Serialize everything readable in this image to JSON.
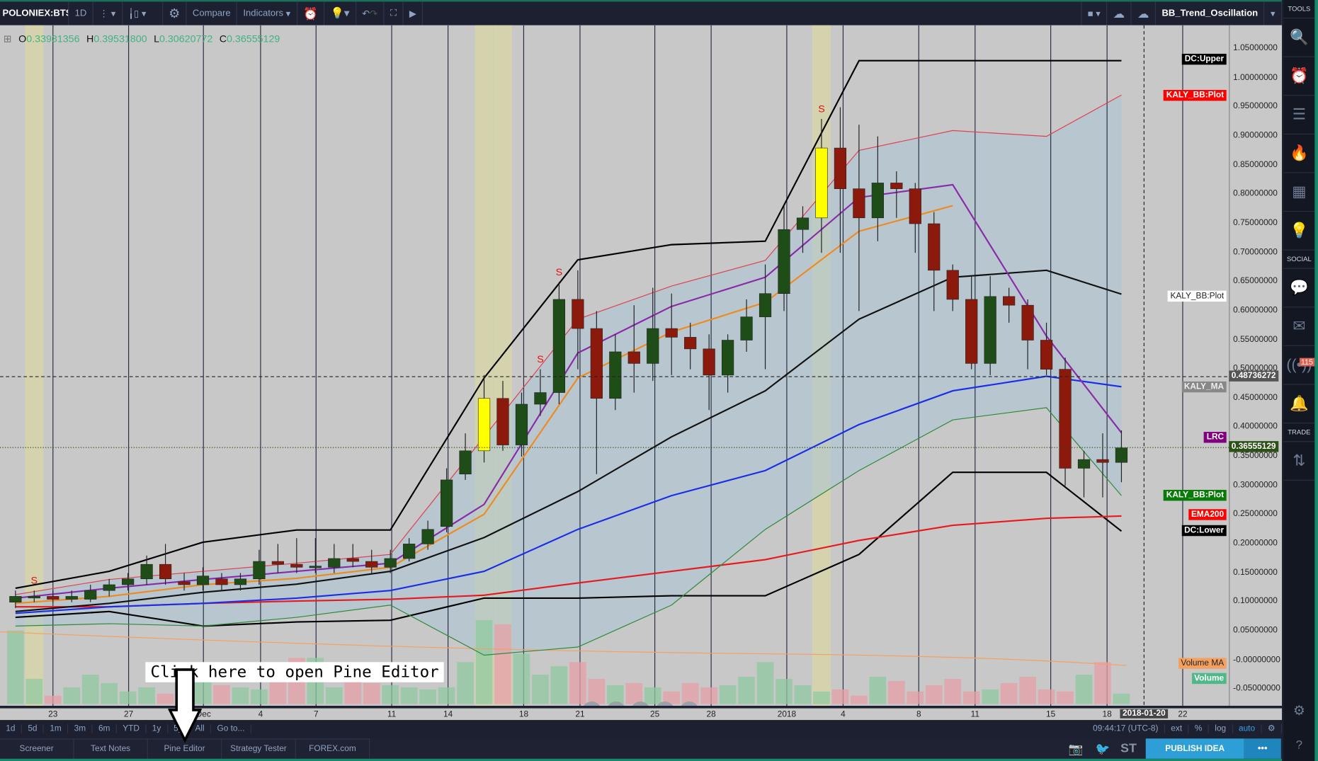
{
  "toolbar": {
    "symbol": "POLONIEX:BTSUSD",
    "interval": "1D",
    "compare": "Compare",
    "indicators": "Indicators",
    "layout_name": "BB_Trend_Oscillation"
  },
  "ohlc": {
    "o_label": "O",
    "o": "0.33931356",
    "h_label": "H",
    "h": "0.39531800",
    "l_label": "L",
    "l": "0.30620772",
    "c_label": "C",
    "c": "0.36555129"
  },
  "price_axis": [
    "1.05000000",
    "1.00000000",
    "0.95000000",
    "0.90000000",
    "0.85000000",
    "0.80000000",
    "0.75000000",
    "0.70000000",
    "0.65000000",
    "0.60000000",
    "0.55000000",
    "0.50000000",
    "0.45000000",
    "0.40000000",
    "0.35000000",
    "0.30000000",
    "0.25000000",
    "0.20000000",
    "0.15000000",
    "0.10000000",
    "0.05000000",
    "-0.00000000",
    "-0.05000000"
  ],
  "crosshair_price": "0.48736272",
  "last_price": "0.36555129",
  "indicator_labels": {
    "dc_upper": "DC:Upper",
    "bb_upper": "KALY_BB:Plot",
    "bb_mid": "KALY_BB:Plot",
    "kaly_ma": "KALY_MA",
    "lrc": "LRC",
    "bb_lower": "KALY_BB:Plot",
    "ema200": "EMA200",
    "dc_lower": "DC:Lower",
    "volume_ma": "Volume MA",
    "volume": "Volume"
  },
  "signal_marker": "S",
  "time_axis": [
    [
      "23",
      63
    ],
    [
      "27",
      153
    ],
    [
      "Dec",
      242
    ],
    [
      "4",
      310
    ],
    [
      "7",
      376
    ],
    [
      "11",
      466
    ],
    [
      "14",
      533
    ],
    [
      "18",
      623
    ],
    [
      "21",
      690
    ],
    [
      "25",
      779
    ],
    [
      "28",
      846
    ],
    [
      "2018",
      936
    ],
    [
      "4",
      1003
    ],
    [
      "8",
      1093
    ],
    [
      "11",
      1160
    ],
    [
      "15",
      1250
    ],
    [
      "18",
      1317
    ],
    [
      "22",
      1407
    ]
  ],
  "crosshair_date": "2018-01-20",
  "ranges": [
    "1d",
    "5d",
    "1m",
    "3m",
    "6m",
    "YTD",
    "1y",
    "5y",
    "All",
    "Go to..."
  ],
  "clock": "09:44:17 (UTC-8)",
  "scale_opts": [
    "ext",
    "%",
    "log",
    "auto"
  ],
  "tabs": [
    "Screener",
    "Text Notes",
    "Pine Editor",
    "Strategy Tester",
    "FOREX.com"
  ],
  "publish": "PUBLISH IDEA",
  "sidebar": {
    "tools": "TOOLS",
    "social": "SOCIAL",
    "trade": "TRADE",
    "badge": "115"
  },
  "annotation": "Click here to open Pine Editor",
  "chart_data": {
    "type": "candlestick",
    "start": "2017-11-21",
    "end": "2018-01-19",
    "ylim": [
      -0.05,
      1.05
    ],
    "open": [
      0.1,
      0.11,
      0.11,
      0.105,
      0.105,
      0.12,
      0.13,
      0.14,
      0.165,
      0.135,
      0.13,
      0.14,
      0.13,
      0.14,
      0.17,
      0.165,
      0.16,
      0.16,
      0.175,
      0.17,
      0.16,
      0.175,
      0.2,
      0.23,
      0.32,
      0.36,
      0.45,
      0.37,
      0.44,
      0.46,
      0.62,
      0.57,
      0.45,
      0.53,
      0.51,
      0.57,
      0.555,
      0.535,
      0.49,
      0.55,
      0.59,
      0.63,
      0.74,
      0.76,
      0.88,
      0.81,
      0.76,
      0.82,
      0.81,
      0.75,
      0.67,
      0.62,
      0.51,
      0.625,
      0.61,
      0.55,
      0.5,
      0.33,
      0.345,
      0.34
    ],
    "close": [
      0.11,
      0.11,
      0.105,
      0.11,
      0.12,
      0.13,
      0.14,
      0.165,
      0.14,
      0.13,
      0.145,
      0.13,
      0.14,
      0.17,
      0.165,
      0.16,
      0.162,
      0.175,
      0.17,
      0.16,
      0.175,
      0.2,
      0.225,
      0.31,
      0.36,
      0.45,
      0.37,
      0.44,
      0.46,
      0.62,
      0.57,
      0.45,
      0.53,
      0.51,
      0.57,
      0.555,
      0.535,
      0.49,
      0.55,
      0.59,
      0.63,
      0.74,
      0.76,
      0.88,
      0.81,
      0.76,
      0.82,
      0.81,
      0.75,
      0.67,
      0.62,
      0.51,
      0.625,
      0.61,
      0.55,
      0.5,
      0.33,
      0.345,
      0.34,
      0.365
    ],
    "high": [
      0.12,
      0.12,
      0.12,
      0.12,
      0.13,
      0.14,
      0.15,
      0.18,
      0.2,
      0.15,
      0.16,
      0.15,
      0.15,
      0.19,
      0.2,
      0.21,
      0.21,
      0.2,
      0.2,
      0.19,
      0.19,
      0.21,
      0.24,
      0.33,
      0.39,
      0.49,
      0.48,
      0.46,
      0.5,
      0.65,
      0.67,
      0.6,
      0.56,
      0.61,
      0.64,
      0.63,
      0.58,
      0.56,
      0.56,
      0.62,
      0.68,
      0.78,
      0.78,
      0.93,
      0.95,
      0.92,
      0.9,
      0.84,
      0.82,
      0.77,
      0.68,
      0.66,
      0.66,
      0.64,
      0.62,
      0.58,
      0.52,
      0.36,
      0.39,
      0.395
    ],
    "low": [
      0.09,
      0.1,
      0.1,
      0.1,
      0.1,
      0.11,
      0.12,
      0.13,
      0.13,
      0.12,
      0.12,
      0.12,
      0.12,
      0.13,
      0.15,
      0.15,
      0.15,
      0.15,
      0.16,
      0.15,
      0.15,
      0.17,
      0.19,
      0.22,
      0.31,
      0.34,
      0.36,
      0.35,
      0.42,
      0.44,
      0.5,
      0.32,
      0.43,
      0.46,
      0.48,
      0.49,
      0.5,
      0.43,
      0.46,
      0.53,
      0.5,
      0.6,
      0.7,
      0.7,
      0.7,
      0.6,
      0.72,
      0.76,
      0.7,
      0.6,
      0.6,
      0.5,
      0.49,
      0.58,
      0.5,
      0.49,
      0.3,
      0.28,
      0.28,
      0.306
    ],
    "volume": [
      175,
      60,
      20,
      40,
      70,
      50,
      30,
      40,
      25,
      65,
      60,
      45,
      40,
      35,
      80,
      110,
      110,
      40,
      70,
      50,
      45,
      40,
      35,
      40,
      100,
      200,
      190,
      120,
      70,
      90,
      100,
      60,
      45,
      50,
      40,
      30,
      50,
      40,
      45,
      65,
      100,
      60,
      45,
      30,
      35,
      20,
      65,
      55,
      30,
      45,
      60,
      30,
      35,
      50,
      65,
      35,
      30,
      70,
      100,
      25
    ],
    "series": [
      {
        "name": "DC:Upper",
        "color": "#000000",
        "values": [
          0.124,
          0.153,
          0.203,
          0.224,
          0.224,
          0.485,
          0.688,
          0.714,
          0.72,
          1.03,
          1.03,
          1.03,
          1.03
        ]
      },
      {
        "name": "DC:Lower",
        "color": "#000000",
        "values": [
          0.074,
          0.084,
          0.059,
          0.066,
          0.069,
          0.107,
          0.107,
          0.111,
          0.111,
          0.182,
          0.323,
          0.323,
          0.222
        ]
      },
      {
        "name": "EMA200",
        "color": "#e8191e",
        "values": [
          0.092,
          0.092,
          0.098,
          0.102,
          0.105,
          0.112,
          0.133,
          0.153,
          0.173,
          0.206,
          0.232,
          0.244,
          0.248
        ]
      },
      {
        "name": "KALY_MA",
        "color": "#1a2ee8",
        "values": [
          0.081,
          0.092,
          0.098,
          0.107,
          0.12,
          0.153,
          0.225,
          0.283,
          0.326,
          0.405,
          0.463,
          0.488,
          0.47
        ]
      },
      {
        "name": "KALY_BB mid",
        "color": "#111111",
        "values": [
          0.084,
          0.098,
          0.117,
          0.131,
          0.153,
          0.211,
          0.29,
          0.384,
          0.463,
          0.586,
          0.658,
          0.67,
          0.629
        ]
      },
      {
        "name": "LRC",
        "color": "#8a2aa8",
        "values": [
          0.107,
          0.124,
          0.139,
          0.153,
          0.167,
          0.268,
          0.528,
          0.608,
          0.658,
          0.795,
          0.817,
          0.557,
          0.391
        ]
      },
      {
        "name": "Orange MA",
        "color": "#f08a1c",
        "values": [
          0.098,
          0.11,
          0.13,
          0.141,
          0.16,
          0.251,
          0.485,
          0.564,
          0.615,
          0.737,
          0.781,
          null,
          null
        ]
      },
      {
        "name": "KALY_BB upper",
        "color": "#e04050",
        "values": [
          0.113,
          0.139,
          0.153,
          0.167,
          0.182,
          0.384,
          0.586,
          0.643,
          0.687,
          0.876,
          0.91,
          0.9,
          0.971
        ]
      },
      {
        "name": "KALY_BB lower",
        "color": "#2f8a3a",
        "values": [
          0.059,
          0.063,
          0.059,
          0.074,
          0.095,
          0.009,
          0.023,
          0.095,
          0.225,
          0.326,
          0.413,
          0.434,
          0.283
        ]
      }
    ],
    "series_step": 5,
    "signals": [
      1,
      28,
      29,
      43
    ],
    "highlight_days": [
      1,
      25,
      26,
      43
    ]
  }
}
